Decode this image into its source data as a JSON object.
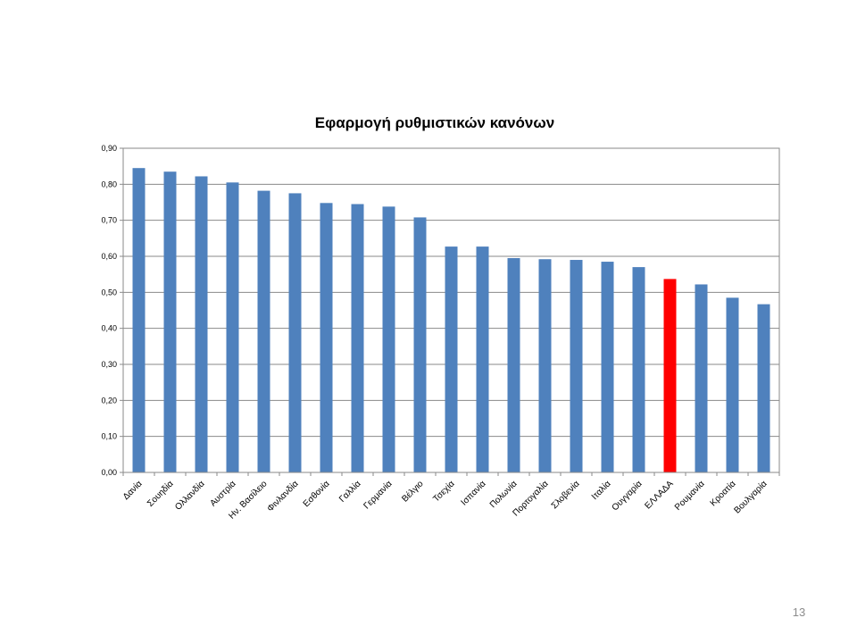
{
  "page_number": "13",
  "colors": {
    "bar": "#4F81BD",
    "highlight": "#FF0000",
    "grid": "#8a8a8a"
  },
  "chart_data": {
    "type": "bar",
    "title": "Εφαρμογή ρυθμιστικών κανόνων",
    "xlabel": "",
    "ylabel": "",
    "ylim": [
      0,
      0.9
    ],
    "grid": true,
    "legend": "none",
    "ytick_values": [
      0,
      0.1,
      0.2,
      0.3,
      0.4,
      0.5,
      0.6,
      0.7,
      0.8,
      0.9
    ],
    "ytick_labels": [
      "0,00",
      "0,10",
      "0,20",
      "0,30",
      "0,40",
      "0,50",
      "0,60",
      "0,70",
      "0,80",
      "0,90"
    ],
    "categories": [
      "Δανία",
      "Σουηδία",
      "Ολλανδία",
      "Αυστρία",
      "Ην. Βασίλειο",
      "Φινλανδία",
      "Εσθονία",
      "Γαλλία",
      "Γερμανία",
      "Βέλγιο",
      "Τσεχία",
      "Ισπανία",
      "Πολωνία",
      "Πορτογαλία",
      "Σλοβενία",
      "Ιταλία",
      "Ουγγαρία",
      "ΕΛΛΑΔΑ",
      "Ρουμανία",
      "Κροατία",
      "Βουλγαρία"
    ],
    "values": [
      0.845,
      0.835,
      0.822,
      0.805,
      0.782,
      0.775,
      0.748,
      0.745,
      0.738,
      0.708,
      0.627,
      0.627,
      0.595,
      0.592,
      0.59,
      0.585,
      0.57,
      0.537,
      0.522,
      0.485,
      0.467
    ],
    "highlight_category": "ΕΛΛΑΔΑ"
  }
}
